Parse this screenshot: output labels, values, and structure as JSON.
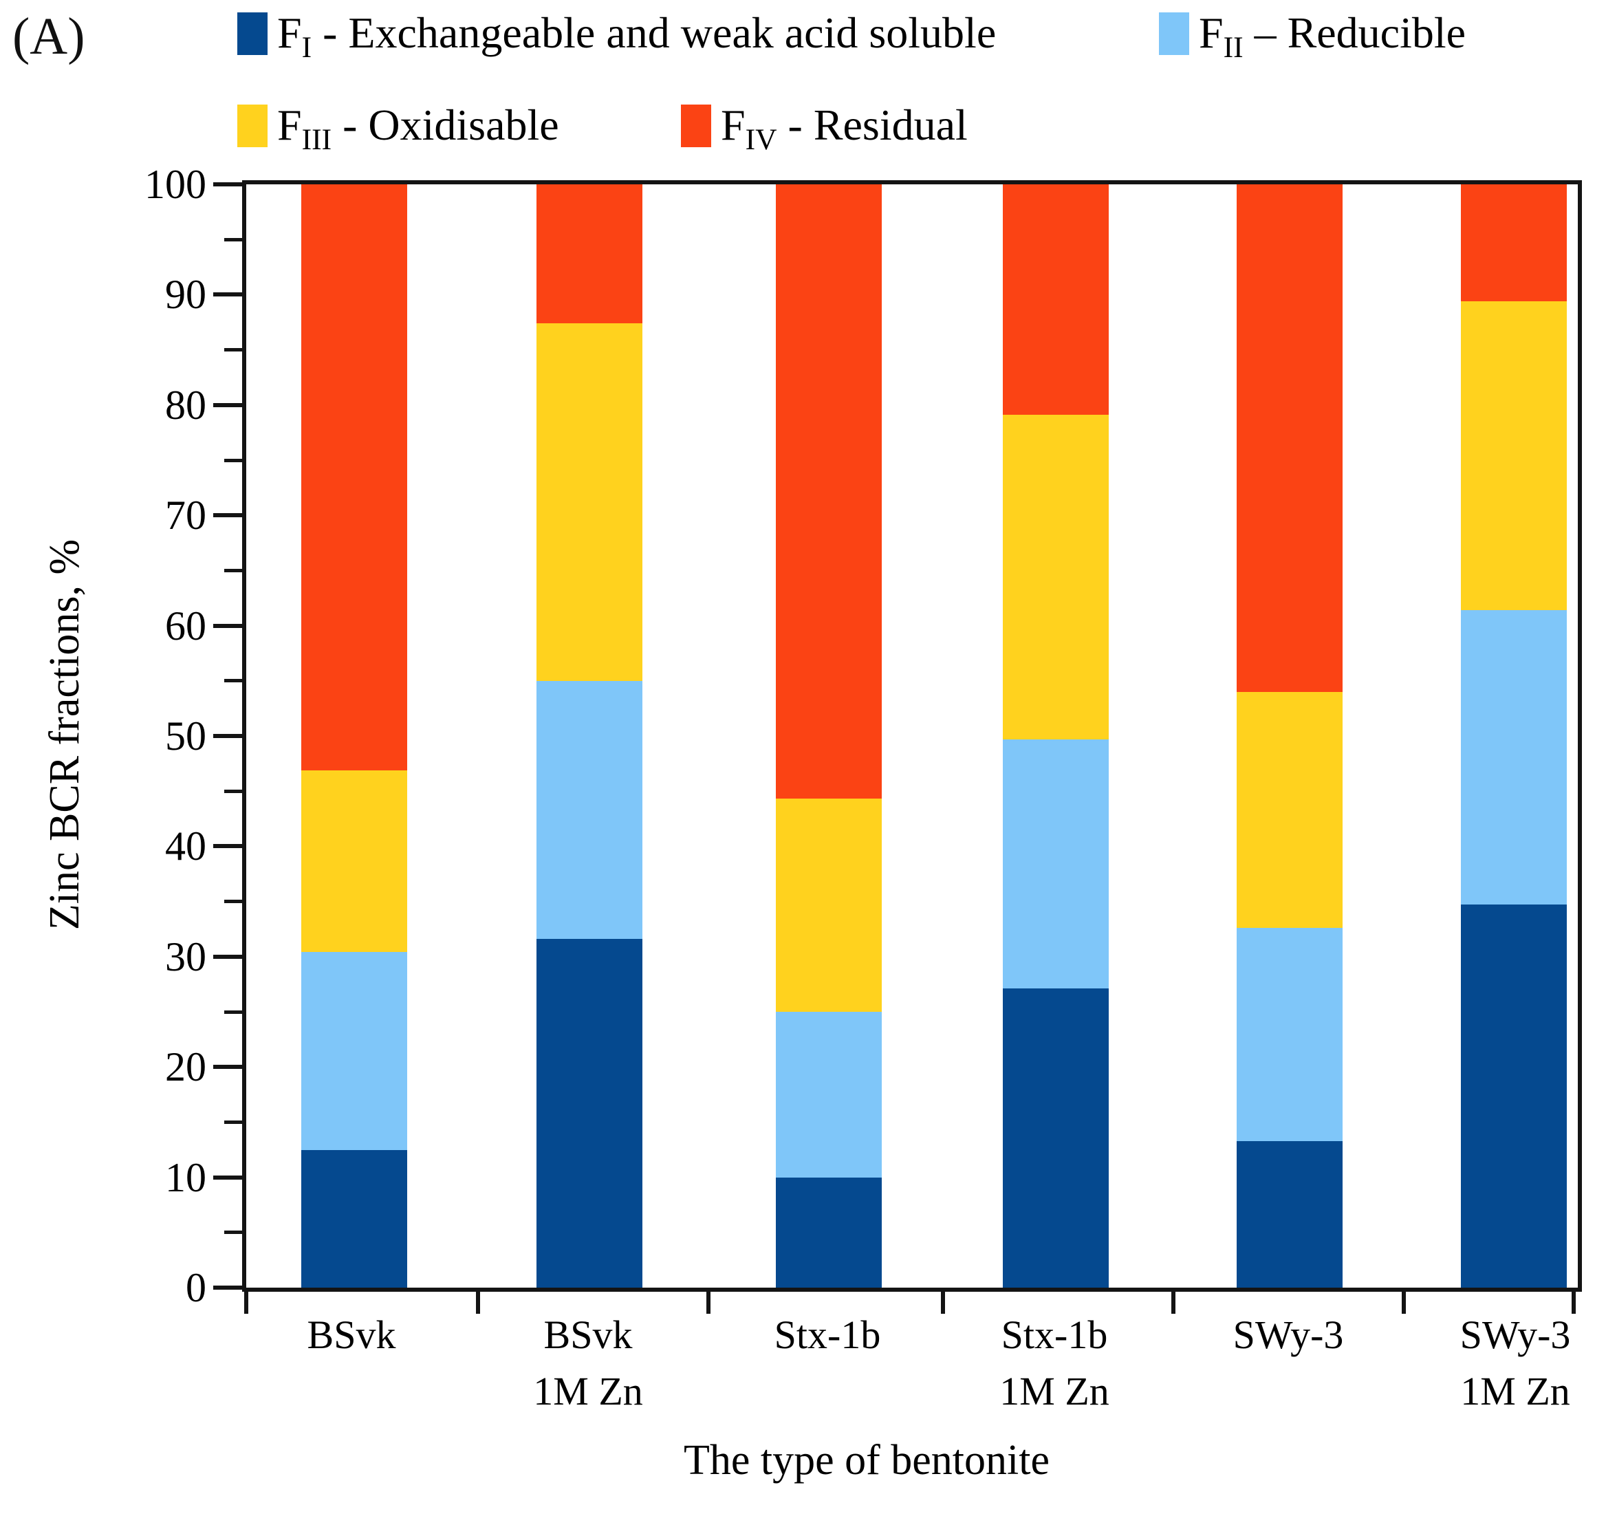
{
  "panel_label": "(A)",
  "chart_data": {
    "type": "bar",
    "stacked": true,
    "orientation": "vertical",
    "title": "",
    "xlabel": "The type of bentonite",
    "ylabel": "Zinc BCR fractions, %",
    "ylim": [
      0,
      100
    ],
    "yticks": [
      0,
      10,
      20,
      30,
      40,
      50,
      60,
      70,
      80,
      90,
      100
    ],
    "yticks_minor": [
      5,
      15,
      25,
      35,
      45,
      55,
      65,
      75,
      85,
      95
    ],
    "grid": false,
    "legend_position": "top",
    "categories": [
      {
        "line1": "BSvk",
        "line2": ""
      },
      {
        "line1": "BSvk",
        "line2": "1M Zn"
      },
      {
        "line1": "Stx-1b",
        "line2": ""
      },
      {
        "line1": "Stx-1b",
        "line2": "1M Zn"
      },
      {
        "line1": "SWy-3",
        "line2": ""
      },
      {
        "line1": "SWy-3",
        "line2": "1M Zn"
      }
    ],
    "series": [
      {
        "name": "FI - Exchangeable and weak acid soluble",
        "symbol": "F",
        "subscript": "I",
        "separator": " - ",
        "label_rest": "Exchangeable and weak acid soluble",
        "color": "#05498F",
        "values": [
          12.5,
          31.6,
          10.0,
          27.1,
          13.3,
          34.7
        ]
      },
      {
        "name": "FII – Reducible",
        "symbol": "F",
        "subscript": "II",
        "separator": " – ",
        "label_rest": "Reducible",
        "color": "#7FC6F9",
        "values": [
          17.9,
          23.4,
          15.0,
          22.6,
          19.3,
          26.7
        ]
      },
      {
        "name": "FIII - Oxidisable",
        "symbol": "F",
        "subscript": "III",
        "separator": " - ",
        "label_rest": "Oxidisable",
        "color": "#FFD21E",
        "values": [
          16.5,
          32.4,
          19.3,
          29.4,
          21.4,
          28.0
        ]
      },
      {
        "name": "FIV - Residual",
        "symbol": "F",
        "subscript": "IV",
        "separator": " - ",
        "label_rest": "Residual",
        "color": "#FB4314",
        "values": [
          53.1,
          12.6,
          55.7,
          20.9,
          46.0,
          10.6
        ]
      }
    ]
  },
  "colors": {
    "axis": "#141414",
    "text": "#000000",
    "background": "#FFFFFF"
  }
}
